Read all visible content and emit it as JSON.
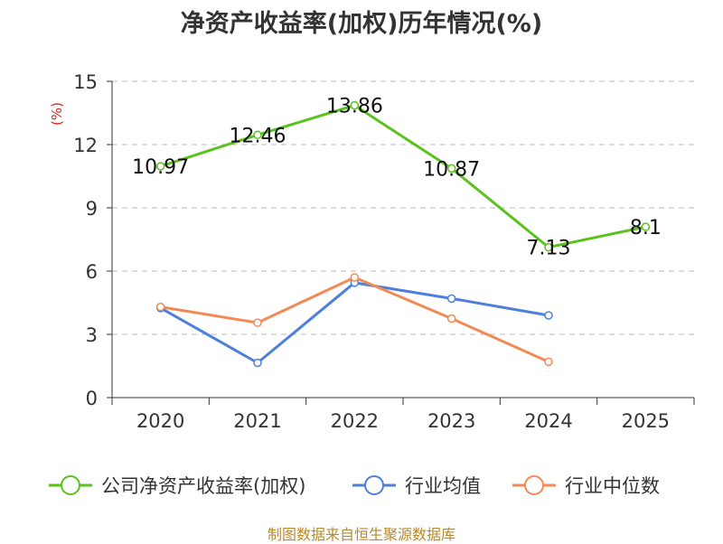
{
  "title": "净资产收益率(加权)历年情况(%)",
  "source": "制图数据来自恒生聚源数据库",
  "colors": {
    "company": "#5bc21c",
    "industry_avg": "#4e7fdc",
    "industry_median": "#f38a55",
    "unit": "#e02020",
    "axis": "#333333",
    "grid": "#bbbbbb"
  },
  "chart_data": {
    "type": "line",
    "title": "净资产收益率(加权)历年情况(%)",
    "xlabel": "",
    "ylabel": "(%)",
    "categories": [
      "2020",
      "2021",
      "2022",
      "2023",
      "2024",
      "2025"
    ],
    "ylim": [
      0,
      15
    ],
    "yticks": [
      0,
      3,
      6,
      9,
      12,
      15
    ],
    "grid": true,
    "legend": "bottom",
    "series": [
      {
        "name": "公司净资产收益率(加权)",
        "color": "#5bc21c",
        "values": [
          10.97,
          12.46,
          13.86,
          10.87,
          7.13,
          8.1
        ],
        "labels": [
          "10.97",
          "12.46",
          "13.86",
          "10.87",
          "7.13",
          "8.1"
        ]
      },
      {
        "name": "行业均值",
        "color": "#4e7fdc",
        "values": [
          4.25,
          1.65,
          5.45,
          4.7,
          3.9,
          null
        ]
      },
      {
        "name": "行业中位数",
        "color": "#f38a55",
        "values": [
          4.3,
          3.55,
          5.7,
          3.75,
          1.7,
          null
        ]
      }
    ]
  }
}
